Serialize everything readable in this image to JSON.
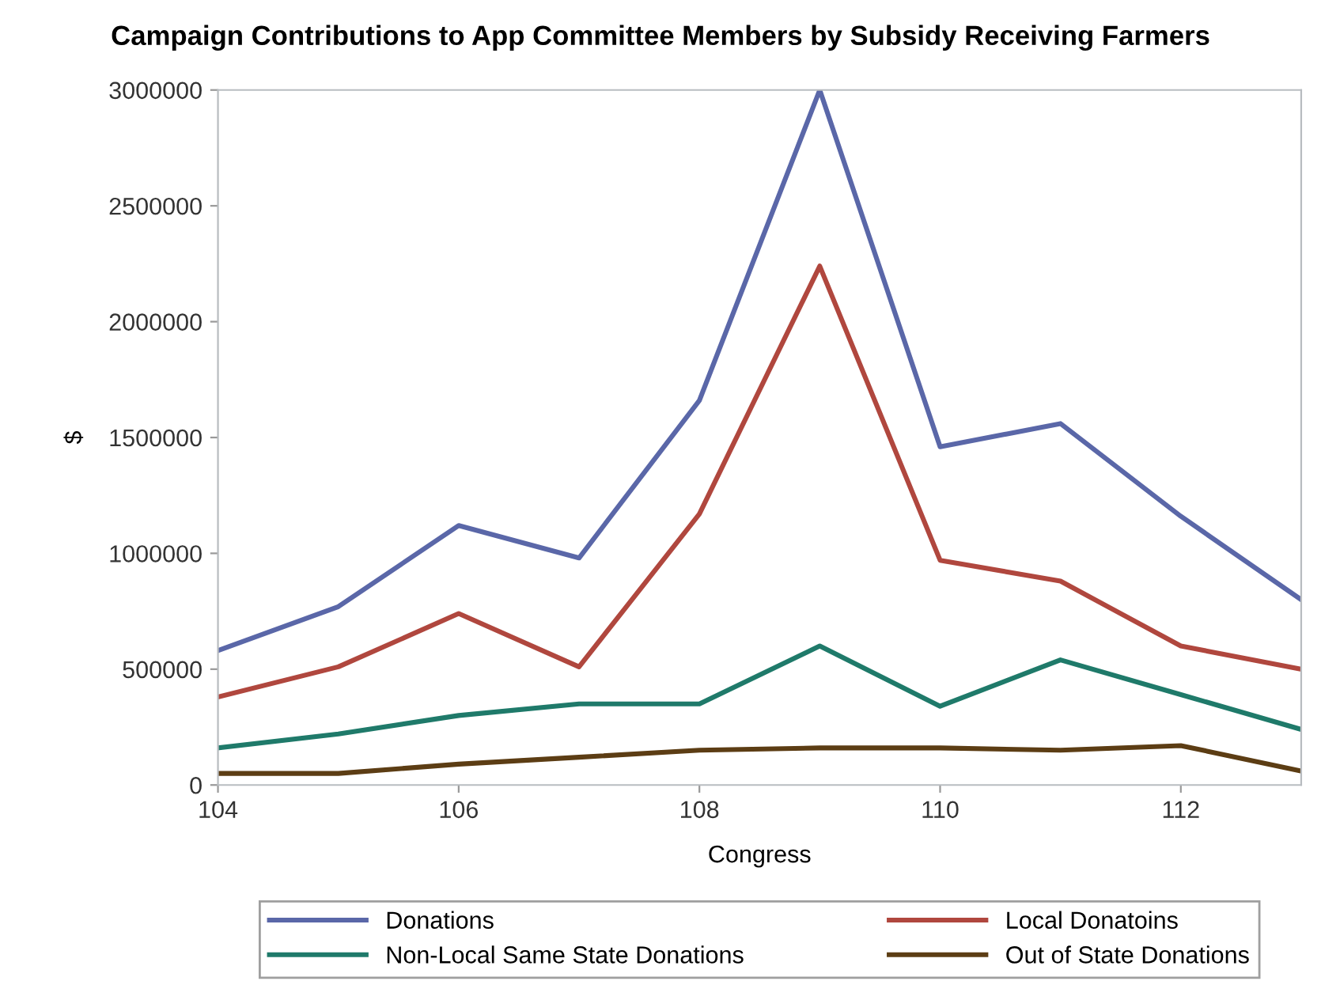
{
  "chart_data": {
    "type": "line",
    "title": "Campaign Contributions to App Committee Members by Subsidy Receiving Farmers",
    "xlabel": "Congress",
    "ylabel": "$",
    "x": [
      104,
      105,
      106,
      107,
      108,
      109,
      110,
      111,
      112,
      113
    ],
    "series": [
      {
        "name": "Donations",
        "color": "#5a67a8",
        "values": [
          580000,
          770000,
          1120000,
          980000,
          1660000,
          3000000,
          1460000,
          1560000,
          1160000,
          800000
        ]
      },
      {
        "name": "Local Donatoins",
        "color": "#b0473e",
        "values": [
          380000,
          510000,
          740000,
          510000,
          1170000,
          2240000,
          970000,
          880000,
          600000,
          500000
        ]
      },
      {
        "name": "Non-Local Same State Donations",
        "color": "#1f7a6a",
        "values": [
          160000,
          220000,
          300000,
          350000,
          350000,
          600000,
          340000,
          540000,
          390000,
          240000
        ]
      },
      {
        "name": "Out of State Donations",
        "color": "#5c3d14",
        "values": [
          50000,
          50000,
          90000,
          120000,
          150000,
          160000,
          160000,
          150000,
          170000,
          60000
        ]
      }
    ],
    "xlim": [
      104,
      113
    ],
    "xticks": [
      104,
      106,
      108,
      110,
      112
    ],
    "ylim": [
      0,
      3000000
    ],
    "yticks": [
      0,
      500000,
      1000000,
      1500000,
      2000000,
      2500000,
      3000000
    ],
    "grid": false,
    "legend": "bottom",
    "marker": "none",
    "line_style": "solid"
  }
}
